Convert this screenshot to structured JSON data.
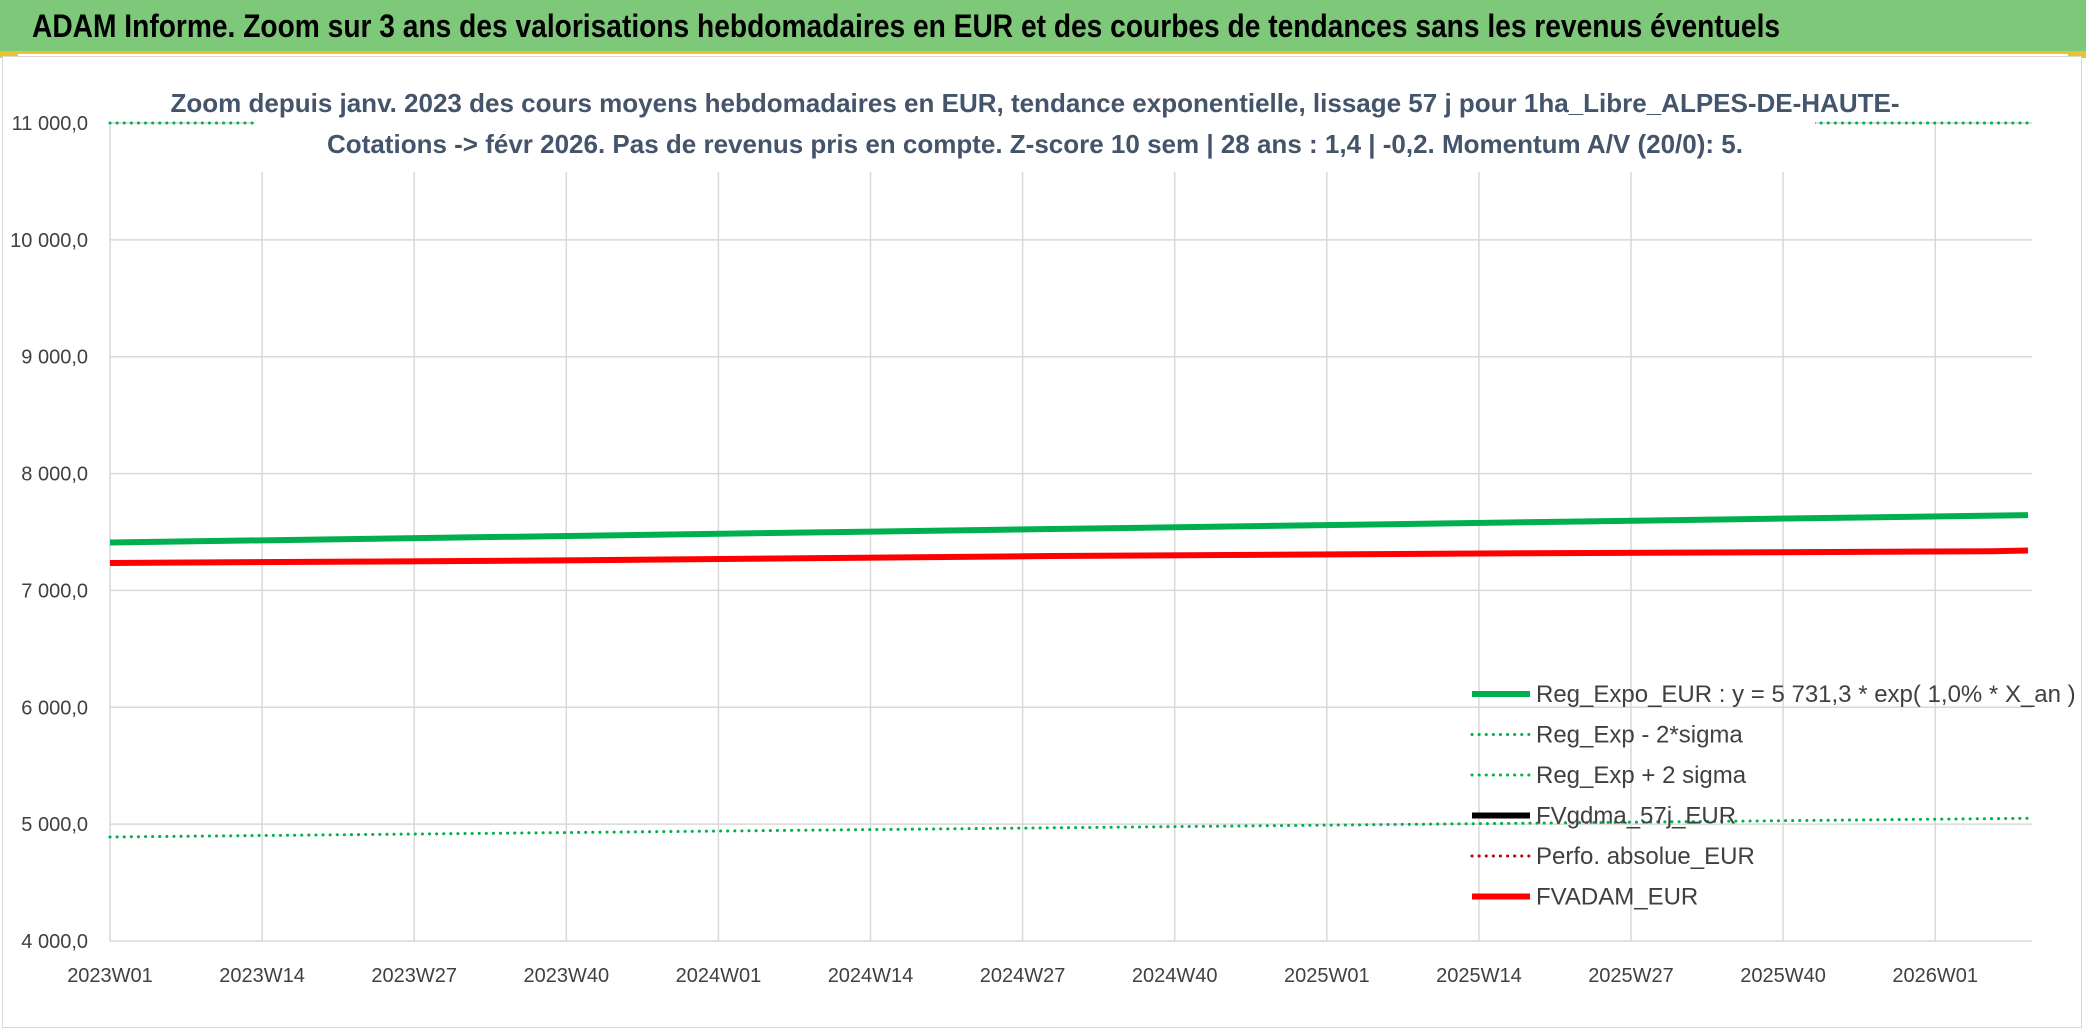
{
  "banner": {
    "title": "ADAM Informe. Zoom sur 3 ans des valorisations hebdomadaires en EUR et des courbes de tendances sans les revenus éventuels"
  },
  "chart_data": {
    "type": "line",
    "title_lines": [
      "Zoom depuis janv. 2023 des cours moyens hebdomadaires en EUR, tendance exponentielle, lissage 57 j pour 1ha_Libre_ALPES-DE-HAUTE-",
      "Cotations -> févr 2026. Pas de revenus pris en compte. Z-score 10 sem | 28 ans : 1,4 | -0,2. Momentum A/V (20/0): 5."
    ],
    "x_tick_labels": [
      "2023W01",
      "2023W14",
      "2023W27",
      "2023W40",
      "2024W01",
      "2024W14",
      "2024W27",
      "2024W40",
      "2025W01",
      "2025W14",
      "2025W27",
      "2025W40",
      "2026W01"
    ],
    "x_range_weeks": [
      0,
      163
    ],
    "y_tick_labels": [
      "4 000,0",
      "5 000,0",
      "6 000,0",
      "7 000,0",
      "8 000,0",
      "9 000,0",
      "10 000,0",
      "11 000,0"
    ],
    "ylim": [
      4000,
      11000
    ],
    "grid": true,
    "legend_position": "bottom-right",
    "series": [
      {
        "name": "Reg_Expo_EUR : y = 5 731,3 * exp( 1,0% *  X_an )",
        "color": "#00b050",
        "style": "solid",
        "width": 6,
        "x": [
          0,
          163
        ],
        "y": [
          7410,
          7645
        ]
      },
      {
        "name": "Reg_Exp - 2*sigma",
        "color": "#00b050",
        "style": "dotted",
        "width": 3,
        "x": [
          0,
          163
        ],
        "y": [
          4890,
          5050
        ]
      },
      {
        "name": "Reg_Exp + 2 sigma",
        "color": "#00b050",
        "style": "dotted",
        "width": 3,
        "x": [
          0,
          163
        ],
        "y": [
          11000,
          11000
        ]
      },
      {
        "name": "FVgdma_57j_EUR",
        "color": "#000000",
        "style": "solid",
        "width": 5,
        "x": [],
        "y": []
      },
      {
        "name": "Perfo. absolue_EUR",
        "color": "#c00000",
        "style": "dotted",
        "width": 3,
        "x": [],
        "y": []
      },
      {
        "name": "FVADAM_EUR",
        "color": "#ff0000",
        "style": "solid",
        "width": 6,
        "x": [
          0,
          40,
          80,
          120,
          160,
          163
        ],
        "y": [
          7235,
          7258,
          7295,
          7318,
          7335,
          7342
        ]
      }
    ]
  }
}
